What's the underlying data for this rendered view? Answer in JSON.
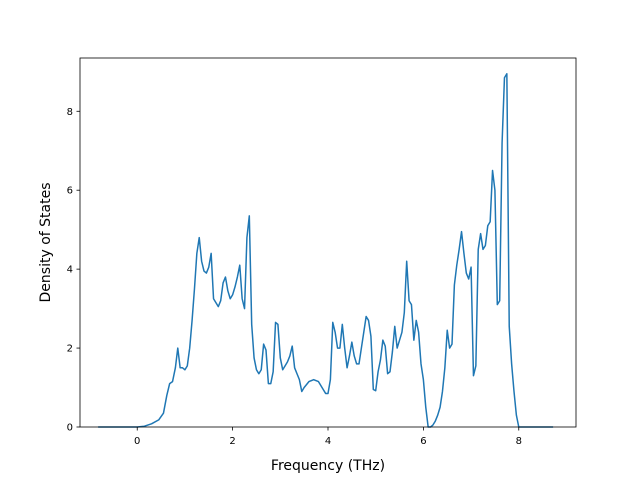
{
  "chart_data": {
    "type": "line",
    "title": "",
    "xlabel": "Frequency (THz)",
    "ylabel": "Density of States",
    "xlim": [
      -1.2,
      9.2
    ],
    "ylim": [
      0,
      9.35
    ],
    "xticks": [
      0,
      2,
      4,
      6,
      8
    ],
    "yticks": [
      0,
      2,
      4,
      6,
      8
    ],
    "grid": false,
    "legend": "none",
    "series": [
      {
        "color": "#1f77b4",
        "x": [
          -0.82,
          -0.3,
          0.0,
          0.15,
          0.3,
          0.45,
          0.55,
          0.62,
          0.68,
          0.74,
          0.8,
          0.85,
          0.9,
          0.95,
          1.0,
          1.05,
          1.1,
          1.15,
          1.2,
          1.25,
          1.3,
          1.35,
          1.4,
          1.45,
          1.5,
          1.55,
          1.6,
          1.7,
          1.75,
          1.8,
          1.85,
          1.9,
          1.95,
          2.0,
          2.05,
          2.1,
          2.15,
          2.2,
          2.25,
          2.3,
          2.35,
          2.4,
          2.45,
          2.5,
          2.55,
          2.6,
          2.65,
          2.7,
          2.75,
          2.8,
          2.85,
          2.9,
          2.95,
          3.0,
          3.05,
          3.1,
          3.15,
          3.2,
          3.25,
          3.3,
          3.35,
          3.4,
          3.45,
          3.5,
          3.6,
          3.7,
          3.8,
          3.9,
          3.95,
          4.0,
          4.05,
          4.1,
          4.15,
          4.2,
          4.25,
          4.3,
          4.35,
          4.4,
          4.45,
          4.5,
          4.55,
          4.6,
          4.65,
          4.7,
          4.75,
          4.8,
          4.85,
          4.9,
          4.95,
          5.0,
          5.05,
          5.1,
          5.15,
          5.2,
          5.25,
          5.3,
          5.35,
          5.4,
          5.45,
          5.5,
          5.55,
          5.6,
          5.65,
          5.7,
          5.75,
          5.8,
          5.85,
          5.9,
          5.95,
          6.0,
          6.05,
          6.1,
          6.15,
          6.2,
          6.25,
          6.3,
          6.35,
          6.4,
          6.45,
          6.5,
          6.55,
          6.6,
          6.65,
          6.7,
          6.75,
          6.8,
          6.85,
          6.9,
          6.95,
          7.0,
          7.05,
          7.1,
          7.15,
          7.2,
          7.25,
          7.3,
          7.35,
          7.4,
          7.45,
          7.5,
          7.55,
          7.6,
          7.65,
          7.7,
          7.75,
          7.8,
          7.85,
          7.9,
          7.95,
          8.0,
          8.1,
          8.3,
          8.5,
          8.72
        ],
        "y": [
          0,
          0,
          0,
          0.02,
          0.08,
          0.18,
          0.35,
          0.8,
          1.1,
          1.15,
          1.5,
          2.0,
          1.5,
          1.5,
          1.45,
          1.55,
          2.0,
          2.7,
          3.5,
          4.4,
          4.8,
          4.2,
          3.95,
          3.9,
          4.05,
          4.4,
          3.25,
          3.05,
          3.2,
          3.65,
          3.8,
          3.45,
          3.25,
          3.35,
          3.55,
          3.8,
          4.1,
          3.25,
          3.0,
          4.8,
          5.35,
          2.6,
          1.75,
          1.45,
          1.35,
          1.45,
          2.1,
          1.95,
          1.1,
          1.1,
          1.4,
          2.65,
          2.6,
          1.75,
          1.45,
          1.55,
          1.65,
          1.8,
          2.05,
          1.5,
          1.35,
          1.2,
          0.9,
          1.0,
          1.15,
          1.2,
          1.15,
          0.95,
          0.85,
          0.85,
          1.2,
          2.65,
          2.4,
          2.0,
          2.0,
          2.6,
          2.0,
          1.5,
          1.8,
          2.15,
          1.8,
          1.6,
          1.6,
          2.0,
          2.4,
          2.8,
          2.7,
          2.3,
          0.95,
          0.92,
          1.4,
          1.7,
          2.2,
          2.05,
          1.35,
          1.4,
          1.9,
          2.55,
          2.0,
          2.2,
          2.4,
          2.9,
          4.2,
          3.2,
          3.1,
          2.2,
          2.7,
          2.4,
          1.6,
          1.2,
          0.5,
          0.0,
          0.0,
          0.05,
          0.15,
          0.3,
          0.5,
          0.9,
          1.5,
          2.45,
          2.0,
          2.1,
          3.6,
          4.1,
          4.5,
          4.95,
          4.4,
          3.9,
          3.75,
          4.05,
          1.3,
          1.55,
          4.5,
          4.9,
          4.5,
          4.6,
          5.1,
          5.2,
          6.5,
          6.0,
          3.1,
          3.2,
          7.2,
          8.85,
          8.95,
          2.55,
          1.6,
          0.9,
          0.3,
          0,
          0,
          0,
          0,
          0
        ]
      }
    ]
  }
}
